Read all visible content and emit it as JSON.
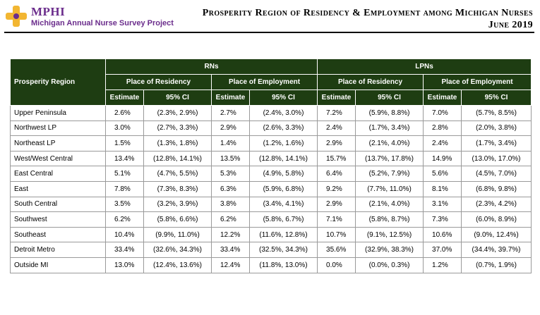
{
  "header": {
    "logo_name": "MPHI",
    "logo_tagline": "Michigan Annual Nurse Survey Project",
    "title": "Prosperity Region of Residency & Employment among Michigan Nurses",
    "subtitle": "June 2019"
  },
  "colors": {
    "header_bg": "#1e3d12",
    "brand_purple": "#6b2d8c",
    "brand_gold": "#f2b632"
  },
  "table": {
    "region_header": "Prosperity Region",
    "groups": [
      "RNs",
      "LPNs"
    ],
    "subgroups": [
      "Place of Residency",
      "Place of Employment",
      "Place of Residency",
      "Place of Employment"
    ],
    "col_estimate": "Estimate",
    "col_ci": "95% CI",
    "rows": [
      {
        "region": "Upper Peninsula",
        "c": [
          "2.6%",
          "(2.3%, 2.9%)",
          "2.7%",
          "(2.4%, 3.0%)",
          "7.2%",
          "(5.9%, 8.8%)",
          "7.0%",
          "(5.7%, 8.5%)"
        ]
      },
      {
        "region": "Northwest LP",
        "c": [
          "3.0%",
          "(2.7%, 3.3%)",
          "2.9%",
          "(2.6%, 3.3%)",
          "2.4%",
          "(1.7%, 3.4%)",
          "2.8%",
          "(2.0%, 3.8%)"
        ]
      },
      {
        "region": "Northeast LP",
        "c": [
          "1.5%",
          "(1.3%, 1.8%)",
          "1.4%",
          "(1.2%, 1.6%)",
          "2.9%",
          "(2.1%, 4.0%)",
          "2.4%",
          "(1.7%, 3.4%)"
        ]
      },
      {
        "region": "West/West Central",
        "c": [
          "13.4%",
          "(12.8%, 14.1%)",
          "13.5%",
          "(12.8%, 14.1%)",
          "15.7%",
          "(13.7%, 17.8%)",
          "14.9%",
          "(13.0%, 17.0%)"
        ]
      },
      {
        "region": "East Central",
        "c": [
          "5.1%",
          "(4.7%, 5.5%)",
          "5.3%",
          "(4.9%, 5.8%)",
          "6.4%",
          "(5.2%, 7.9%)",
          "5.6%",
          "(4.5%, 7.0%)"
        ]
      },
      {
        "region": "East",
        "c": [
          "7.8%",
          "(7.3%, 8.3%)",
          "6.3%",
          "(5.9%, 6.8%)",
          "9.2%",
          "(7.7%, 11.0%)",
          "8.1%",
          "(6.8%, 9.8%)"
        ]
      },
      {
        "region": "South Central",
        "c": [
          "3.5%",
          "(3.2%, 3.9%)",
          "3.8%",
          "(3.4%, 4.1%)",
          "2.9%",
          "(2.1%, 4.0%)",
          "3.1%",
          "(2.3%, 4.2%)"
        ]
      },
      {
        "region": "Southwest",
        "c": [
          "6.2%",
          "(5.8%, 6.6%)",
          "6.2%",
          "(5.8%, 6.7%)",
          "7.1%",
          "(5.8%, 8.7%)",
          "7.3%",
          "(6.0%, 8.9%)"
        ]
      },
      {
        "region": "Southeast",
        "c": [
          "10.4%",
          "(9.9%, 11.0%)",
          "12.2%",
          "(11.6%, 12.8%)",
          "10.7%",
          "(9.1%, 12.5%)",
          "10.6%",
          "(9.0%, 12.4%)"
        ]
      },
      {
        "region": "Detroit Metro",
        "c": [
          "33.4%",
          "(32.6%, 34.3%)",
          "33.4%",
          "(32.5%, 34.3%)",
          "35.6%",
          "(32.9%, 38.3%)",
          "37.0%",
          "(34.4%, 39.7%)"
        ]
      },
      {
        "region": "Outside MI",
        "c": [
          "13.0%",
          "(12.4%, 13.6%)",
          "12.4%",
          "(11.8%, 13.0%)",
          "0.0%",
          "(0.0%, 0.3%)",
          "1.2%",
          "(0.7%, 1.9%)"
        ]
      }
    ]
  }
}
